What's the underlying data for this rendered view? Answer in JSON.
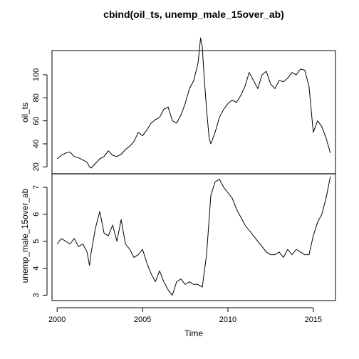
{
  "chart_data": {
    "type": "line",
    "title": "cbind(oil_ts, unemp_male_15over_ab)",
    "xlabel": "Time",
    "xlim": [
      1999.7,
      2016.3
    ],
    "x_ticks": [
      2000,
      2005,
      2010,
      2015
    ],
    "x_tick_labels": [
      "2000",
      "2005",
      "2010",
      "2015"
    ],
    "panels": [
      {
        "ylabel": "oil_ts",
        "ylim": [
          14,
          121
        ],
        "y_ticks": [
          20,
          40,
          60,
          80,
          100
        ],
        "y_tick_labels": [
          "20",
          "40",
          "60",
          "80",
          "100"
        ],
        "series": [
          {
            "x": [
              2000.0,
              2000.25,
              2000.5,
              2000.75,
              2001.0,
              2001.25,
              2001.5,
              2001.75,
              2001.9,
              2002.0,
              2002.25,
              2002.5,
              2002.75,
              2003.0,
              2003.25,
              2003.5,
              2003.75,
              2004.0,
              2004.25,
              2004.5,
              2004.75,
              2005.0,
              2005.25,
              2005.5,
              2005.75,
              2006.0,
              2006.25,
              2006.5,
              2006.75,
              2007.0,
              2007.25,
              2007.5,
              2007.75,
              2008.0,
              2008.25,
              2008.4,
              2008.5,
              2008.6,
              2008.75,
              2008.9,
              2009.0,
              2009.25,
              2009.5,
              2009.75,
              2010.0,
              2010.25,
              2010.5,
              2010.75,
              2011.0,
              2011.25,
              2011.5,
              2011.75,
              2012.0,
              2012.25,
              2012.5,
              2012.75,
              2013.0,
              2013.25,
              2013.5,
              2013.75,
              2014.0,
              2014.25,
              2014.5,
              2014.75,
              2015.0,
              2015.25,
              2015.5,
              2015.75,
              2016.0
            ],
            "values": [
              27,
              30,
              32,
              33,
              29,
              28,
              26,
              24,
              20,
              19,
              23,
              27,
              29,
              34,
              30,
              29,
              31,
              35,
              38,
              42,
              50,
              47,
              52,
              58,
              61,
              63,
              70,
              72,
              60,
              58,
              65,
              75,
              88,
              95,
              110,
              132,
              124,
              100,
              70,
              45,
              40,
              50,
              63,
              70,
              75,
              78,
              76,
              82,
              90,
              102,
              95,
              88,
              100,
              103,
              92,
              88,
              95,
              94,
              97,
              102,
              100,
              105,
              104,
              90,
              50,
              60,
              55,
              45,
              32
            ]
          }
        ]
      },
      {
        "ylabel": "unemp_male_15over_ab",
        "ylim": [
          2.8,
          7.5
        ],
        "y_ticks": [
          3,
          4,
          5,
          6,
          7
        ],
        "y_tick_labels": [
          "3",
          "4",
          "5",
          "6",
          "7"
        ],
        "series": [
          {
            "x": [
              2000.0,
              2000.25,
              2000.5,
              2000.75,
              2001.0,
              2001.25,
              2001.5,
              2001.75,
              2001.9,
              2002.0,
              2002.25,
              2002.5,
              2002.75,
              2003.0,
              2003.25,
              2003.5,
              2003.75,
              2004.0,
              2004.25,
              2004.5,
              2004.75,
              2005.0,
              2005.25,
              2005.5,
              2005.75,
              2006.0,
              2006.25,
              2006.5,
              2006.75,
              2007.0,
              2007.25,
              2007.5,
              2007.75,
              2008.0,
              2008.25,
              2008.5,
              2008.75,
              2009.0,
              2009.25,
              2009.5,
              2009.75,
              2010.0,
              2010.25,
              2010.5,
              2010.75,
              2011.0,
              2011.25,
              2011.5,
              2011.75,
              2012.0,
              2012.25,
              2012.5,
              2012.75,
              2013.0,
              2013.25,
              2013.5,
              2013.75,
              2014.0,
              2014.25,
              2014.5,
              2014.75,
              2015.0,
              2015.25,
              2015.5,
              2015.75,
              2016.0
            ],
            "values": [
              4.9,
              5.1,
              5.0,
              4.9,
              5.1,
              4.8,
              4.9,
              4.6,
              4.1,
              4.6,
              5.5,
              6.1,
              5.3,
              5.2,
              5.6,
              5.0,
              5.8,
              4.9,
              4.7,
              4.4,
              4.5,
              4.7,
              4.2,
              3.8,
              3.5,
              3.9,
              3.5,
              3.2,
              3.0,
              3.5,
              3.6,
              3.4,
              3.5,
              3.4,
              3.4,
              3.3,
              4.5,
              6.7,
              7.2,
              7.3,
              7.0,
              6.8,
              6.6,
              6.2,
              5.9,
              5.6,
              5.4,
              5.2,
              5.0,
              4.8,
              4.6,
              4.5,
              4.5,
              4.6,
              4.4,
              4.7,
              4.5,
              4.7,
              4.6,
              4.5,
              4.5,
              5.2,
              5.7,
              6.0,
              6.6,
              7.4
            ]
          }
        ]
      }
    ]
  }
}
